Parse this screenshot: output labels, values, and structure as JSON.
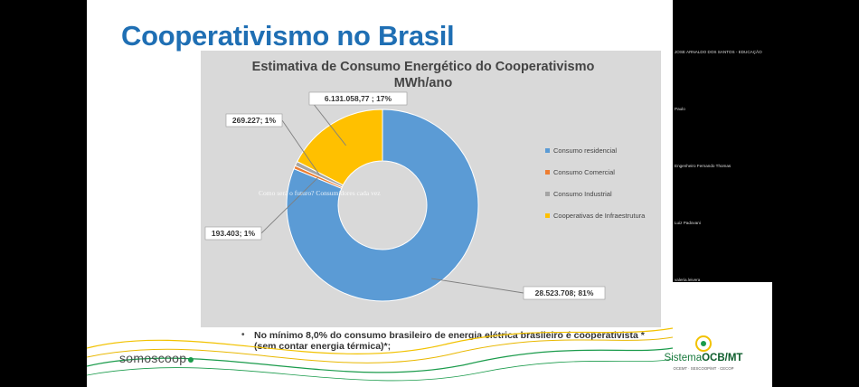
{
  "slide": {
    "title": "Cooperativismo no Brasil",
    "bullet": "No mínimo 8,0% do consumo brasileiro de energia elétrica brasileiro é cooperativista *(sem contar energia térmica)*;",
    "bullet_marker": "•",
    "watermark": "Como será o futuro? Consumidores cada vez"
  },
  "chart_data": {
    "type": "pie",
    "style": "donut",
    "title": "Estimativa de Consumo Energético do Cooperativismo",
    "subtitle": "MWh/ano",
    "legend_position": "right",
    "series": [
      {
        "name": "Consumo residencial",
        "value": 28523708,
        "percent": 81,
        "label": "28.523.708; 81%",
        "color": "#5b9bd5"
      },
      {
        "name": "Consumo Comercial",
        "value": 193403,
        "percent": 1,
        "label": "193.403; 1%",
        "color": "#ed7d31"
      },
      {
        "name": "Consumo Industrial",
        "value": 269227,
        "percent": 1,
        "label": "269.227; 1%",
        "color": "#a5a5a5"
      },
      {
        "name": "Cooperativas de Infraestrutura",
        "value": 6131058.77,
        "percent": 17,
        "label": "6.131.058,77 ; 17%",
        "color": "#ffc000"
      }
    ]
  },
  "branding": {
    "left_logo": "somoscoop",
    "right_logo_main": "Sistema",
    "right_logo_bold": "OCB/MT",
    "right_logo_sub": "OCEMT · SESCOOP/MT · CECOP",
    "colors": {
      "title": "#1f6fb4",
      "green": "#1a9b4b",
      "yellow": "#f2c200"
    }
  },
  "participants": [
    "JOSE ARNALDO DOS SANTOS - EDUCAÇÃO",
    "Paulo",
    "Engenheiro Fernando Thomas",
    "Luiz Padovani",
    "valeria.leivera"
  ]
}
